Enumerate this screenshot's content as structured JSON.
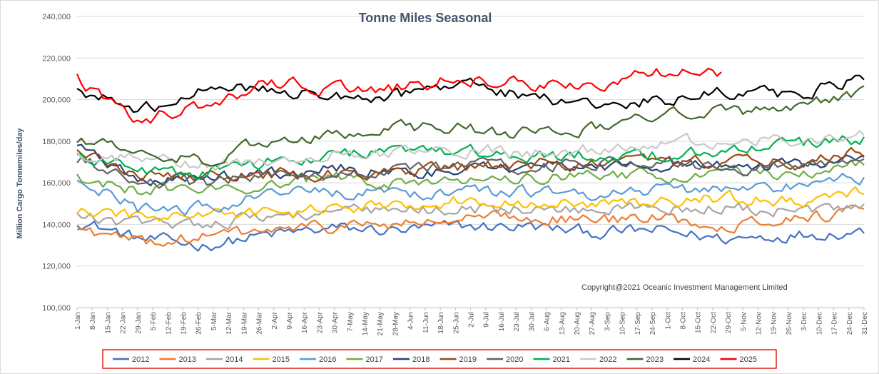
{
  "chart_data": {
    "type": "line",
    "title": "Tonne Miles Seasonal",
    "ylabel": "Million Cargo Tonnemiles/day",
    "xlabel": "",
    "ylim": [
      100000,
      240000
    ],
    "yticks": [
      100000,
      120000,
      140000,
      160000,
      180000,
      200000,
      220000,
      240000
    ],
    "ytick_labels": [
      "100,000",
      "120,000",
      "140,000",
      "160,000",
      "180,000",
      "200,000",
      "220,000",
      "240,000"
    ],
    "x_day_range": [
      1,
      365
    ],
    "x_labels": [
      "1-Jan",
      "8-Jan",
      "15-Jan",
      "22-Jan",
      "29-Jan",
      "5-Feb",
      "12-Feb",
      "19-Feb",
      "26-Feb",
      "5-Mar",
      "12-Mar",
      "19-Mar",
      "26-Mar",
      "2-Apr",
      "9-Apr",
      "16-Apr",
      "23-Apr",
      "30-Apr",
      "7-May",
      "14-May",
      "21-May",
      "28-May",
      "4-Jun",
      "11-Jun",
      "18-Jun",
      "25-Jun",
      "2-Jul",
      "9-Jul",
      "16-Jul",
      "23-Jul",
      "30-Jul",
      "6-Aug",
      "13-Aug",
      "20-Aug",
      "27-Aug",
      "3-Sep",
      "10-Sep",
      "17-Sep",
      "24-Sep",
      "1-Oct",
      "8-Oct",
      "15-Oct",
      "22-Oct",
      "29-Oct",
      "5-Nov",
      "12-Nov",
      "19-Nov",
      "26-Nov",
      "3-Dec",
      "10-Dec",
      "17-Dec",
      "24-Dec",
      "31-Dec"
    ],
    "grid": "horizontal",
    "legend": "bottom",
    "annotation": "Copyright@2021 Oceanic Investment Management Limited",
    "series": [
      {
        "name": "2012",
        "color": "#4472c4",
        "x": [
          1,
          30,
          60,
          90,
          120,
          150,
          180,
          210,
          240,
          270,
          300,
          330,
          365
        ],
        "values": [
          142000,
          133000,
          130000,
          135000,
          138000,
          137000,
          139000,
          139000,
          136000,
          137000,
          133000,
          135000,
          137000
        ]
      },
      {
        "name": "2013",
        "color": "#ed7d31",
        "x": [
          1,
          30,
          60,
          90,
          120,
          150,
          180,
          210,
          240,
          270,
          300,
          330,
          365
        ],
        "values": [
          138000,
          131000,
          134000,
          137000,
          139000,
          140000,
          142000,
          144000,
          142000,
          143000,
          140000,
          143000,
          146000
        ]
      },
      {
        "name": "2014",
        "color": "#a5a5a5",
        "x": [
          1,
          30,
          60,
          90,
          120,
          150,
          180,
          210,
          240,
          270,
          300,
          330,
          365
        ],
        "values": [
          144000,
          140000,
          141000,
          144000,
          146000,
          146000,
          148000,
          147000,
          147000,
          148000,
          148000,
          146000,
          147000
        ]
      },
      {
        "name": "2015",
        "color": "#ffc000",
        "x": [
          1,
          30,
          60,
          90,
          120,
          150,
          180,
          210,
          240,
          270,
          300,
          330,
          365
        ],
        "values": [
          147000,
          143000,
          145000,
          145000,
          147000,
          150000,
          152000,
          151000,
          149000,
          151000,
          153000,
          151000,
          155000
        ]
      },
      {
        "name": "2016",
        "color": "#5b9bd5",
        "x": [
          1,
          30,
          60,
          90,
          120,
          150,
          180,
          210,
          240,
          270,
          300,
          330,
          365
        ],
        "values": [
          161000,
          147000,
          148000,
          155000,
          155000,
          155000,
          155000,
          156000,
          155000,
          157000,
          157000,
          158000,
          163000
        ]
      },
      {
        "name": "2017",
        "color": "#70ad47",
        "x": [
          1,
          30,
          60,
          90,
          120,
          150,
          180,
          210,
          240,
          270,
          300,
          330,
          365
        ],
        "values": [
          162000,
          156000,
          157000,
          159000,
          162000,
          161000,
          162000,
          163000,
          164000,
          164000,
          164000,
          165000,
          169000
        ]
      },
      {
        "name": "2018",
        "color": "#264478",
        "x": [
          1,
          30,
          60,
          90,
          120,
          150,
          180,
          210,
          240,
          270,
          300,
          330,
          365
        ],
        "values": [
          179000,
          162000,
          161000,
          164000,
          167000,
          165000,
          167000,
          168000,
          168000,
          169000,
          168000,
          168000,
          172000
        ]
      },
      {
        "name": "2019",
        "color": "#9e480e",
        "x": [
          1,
          30,
          60,
          90,
          120,
          150,
          180,
          210,
          240,
          270,
          300,
          330,
          365
        ],
        "values": [
          175000,
          164000,
          162000,
          164000,
          165000,
          164000,
          168000,
          169000,
          169000,
          170000,
          170000,
          170000,
          174000
        ]
      },
      {
        "name": "2020",
        "color": "#636363",
        "x": [
          1,
          30,
          60,
          90,
          120,
          150,
          180,
          210,
          240,
          270,
          300,
          330,
          365
        ],
        "values": [
          172000,
          161000,
          160000,
          163000,
          165000,
          166000,
          169000,
          168000,
          169000,
          169000,
          168000,
          168000,
          172000
        ]
      },
      {
        "name": "2021",
        "color": "#00b050",
        "x": [
          1,
          30,
          60,
          90,
          120,
          150,
          180,
          210,
          240,
          270,
          300,
          330,
          365
        ],
        "values": [
          174000,
          166000,
          165000,
          170000,
          174000,
          174000,
          176000,
          173000,
          173000,
          173000,
          175000,
          178000,
          181000
        ]
      },
      {
        "name": "2022",
        "color": "#c9c9c9",
        "x": [
          1,
          30,
          60,
          90,
          120,
          150,
          180,
          210,
          240,
          270,
          300,
          330,
          365
        ],
        "values": [
          173000,
          172000,
          168000,
          171000,
          174000,
          174000,
          176000,
          174000,
          176000,
          178000,
          181000,
          181000,
          182000
        ]
      },
      {
        "name": "2023",
        "color": "#43682b",
        "x": [
          1,
          30,
          60,
          90,
          120,
          150,
          180,
          210,
          240,
          270,
          300,
          330,
          365
        ],
        "values": [
          181000,
          176000,
          170000,
          181000,
          184000,
          186000,
          186000,
          184000,
          186000,
          192000,
          195000,
          194000,
          204000
        ]
      },
      {
        "name": "2024",
        "color": "#000000",
        "x": [
          1,
          30,
          60,
          90,
          120,
          150,
          180,
          210,
          240,
          270,
          300,
          330,
          365
        ],
        "values": [
          205000,
          194000,
          206000,
          205000,
          202000,
          202000,
          207000,
          201000,
          198000,
          200000,
          203000,
          202000,
          210000
        ]
      },
      {
        "name": "2025",
        "color": "#ff0000",
        "x": [
          1,
          30,
          60,
          90,
          120,
          150,
          180,
          210,
          240,
          270,
          300
        ],
        "values": [
          210000,
          190000,
          198000,
          208000,
          205000,
          206000,
          211000,
          207000,
          208000,
          213000,
          212000
        ]
      }
    ]
  }
}
